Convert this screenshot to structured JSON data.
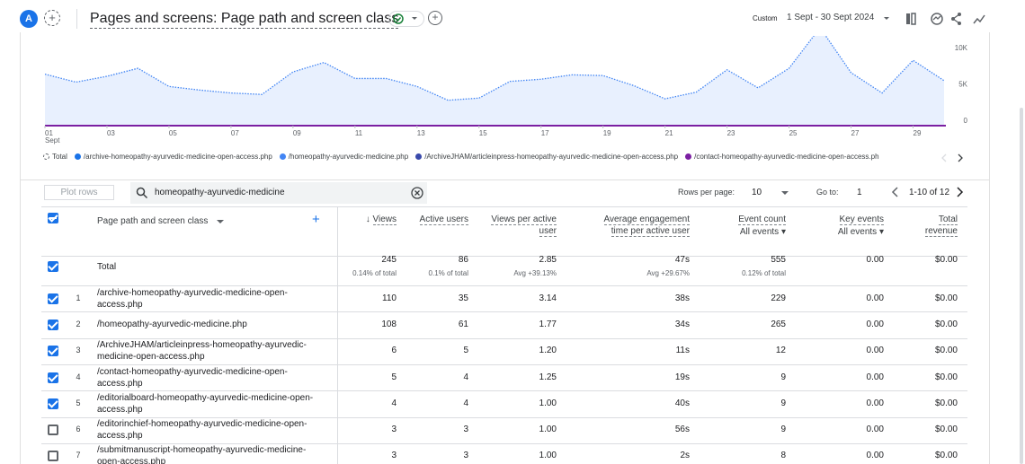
{
  "header": {
    "avatar": "A",
    "title": "Pages and screens: Page path and screen class",
    "date_label": "Custom",
    "date_range": "1 Sept - 30 Sept 2024"
  },
  "chart_data": {
    "type": "line",
    "x": [
      1,
      2,
      3,
      4,
      5,
      6,
      7,
      8,
      9,
      10,
      11,
      12,
      13,
      14,
      15,
      16,
      17,
      18,
      19,
      20,
      21,
      22,
      23,
      24,
      25,
      26,
      27,
      28,
      29,
      30
    ],
    "values": [
      7100,
      6000,
      6800,
      7900,
      5400,
      4900,
      4500,
      4300,
      7400,
      8700,
      6500,
      6500,
      5400,
      3500,
      3800,
      6100,
      6400,
      7000,
      6900,
      5500,
      3700,
      4600,
      7700,
      5200,
      7900,
      13500,
      7300,
      4500,
      9000,
      6200
    ],
    "color": "#4285f4",
    "fill": "#e8f0fe",
    "xlim": [
      1,
      30
    ],
    "ylim": [
      0,
      11500
    ],
    "xticks": [
      {
        "value": 1,
        "label": "01"
      },
      {
        "value": 3,
        "label": "03"
      },
      {
        "value": 5,
        "label": "05"
      },
      {
        "value": 7,
        "label": "07"
      },
      {
        "value": 9,
        "label": "09"
      },
      11,
      13,
      15,
      17,
      19,
      21,
      23,
      25,
      27,
      29
    ],
    "x_sublabel": "Sept",
    "yticks": [
      0,
      {
        "value": 5000,
        "label": "5K"
      },
      {
        "value": 10000,
        "label": "10K"
      }
    ]
  },
  "legend": [
    {
      "label": "Total",
      "color": "#5f6368"
    },
    {
      "label": "/archive-homeopathy-ayurvedic-medicine-open-access.php",
      "color": "#1a73e8"
    },
    {
      "label": "/homeopathy-ayurvedic-medicine.php",
      "color": "#4285f4"
    },
    {
      "label": "/ArchiveJHAM/articleinpress-homeopathy-ayurvedic-medicine-open-access.php",
      "color": "#3949ab"
    },
    {
      "label": "/contact-homeopathy-ayurvedic-medicine-open-access.ph",
      "color": "#7b1fa2"
    }
  ],
  "toolbar": {
    "plot_rows": "Plot rows",
    "search": "homeopathy-ayurvedic-medicine",
    "rows_per_page_label": "Rows per page:",
    "rows_per_page": "10",
    "goto_label": "Go to:",
    "goto": "1",
    "range": "1-10 of 12"
  },
  "table": {
    "dimension_header": "Page path and screen class",
    "metric_headers": [
      {
        "label": "Views"
      },
      {
        "label": "Active users"
      },
      {
        "label": "Views per active user"
      },
      {
        "label": "Average engagement time per active user"
      },
      {
        "label": "Event count",
        "filter": "All events"
      },
      {
        "label": "Key events",
        "filter": "All events"
      },
      {
        "label": "Total revenue"
      }
    ],
    "total": {
      "label": "Total",
      "cells": [
        {
          "value": "245",
          "note": "0.14% of total"
        },
        {
          "value": "86",
          "note": "0.1% of total"
        },
        {
          "value": "2.85",
          "note": "Avg +39.13%"
        },
        {
          "value": "47s",
          "note": "Avg +29.67%"
        },
        {
          "value": "555",
          "note": "0.12% of total"
        },
        {
          "value": "0.00"
        },
        {
          "value": "$0.00"
        }
      ]
    },
    "rows": [
      {
        "selected": true,
        "index": "1",
        "path": "/archive-homeopathy-ayurvedic-medicine-open-access.php",
        "cells": [
          "110",
          "35",
          "3.14",
          "38s",
          "229",
          "0.00",
          "$0.00"
        ]
      },
      {
        "selected": true,
        "index": "2",
        "path": "/homeopathy-ayurvedic-medicine.php",
        "cells": [
          "108",
          "61",
          "1.77",
          "34s",
          "265",
          "0.00",
          "$0.00"
        ]
      },
      {
        "selected": true,
        "index": "3",
        "path": "/ArchiveJHAM/articleinpress-homeopathy-ayurvedic-medicine-open-access.php",
        "cells": [
          "6",
          "5",
          "1.20",
          "11s",
          "12",
          "0.00",
          "$0.00"
        ]
      },
      {
        "selected": true,
        "index": "4",
        "path": "/contact-homeopathy-ayurvedic-medicine-open-access.php",
        "cells": [
          "5",
          "4",
          "1.25",
          "19s",
          "9",
          "0.00",
          "$0.00"
        ]
      },
      {
        "selected": true,
        "index": "5",
        "path": "/editorialboard-homeopathy-ayurvedic-medicine-open-access.php",
        "cells": [
          "4",
          "4",
          "1.00",
          "40s",
          "9",
          "0.00",
          "$0.00"
        ]
      },
      {
        "selected": false,
        "index": "6",
        "path": "/editorinchief-homeopathy-ayurvedic-medicine-open-access.php",
        "cells": [
          "3",
          "3",
          "1.00",
          "56s",
          "9",
          "0.00",
          "$0.00"
        ]
      },
      {
        "selected": false,
        "index": "7",
        "path": "/submitmanuscript-homeopathy-ayurvedic-medicine-open-access.php",
        "cells": [
          "3",
          "3",
          "1.00",
          "2s",
          "8",
          "0.00",
          "$0.00"
        ]
      }
    ]
  }
}
